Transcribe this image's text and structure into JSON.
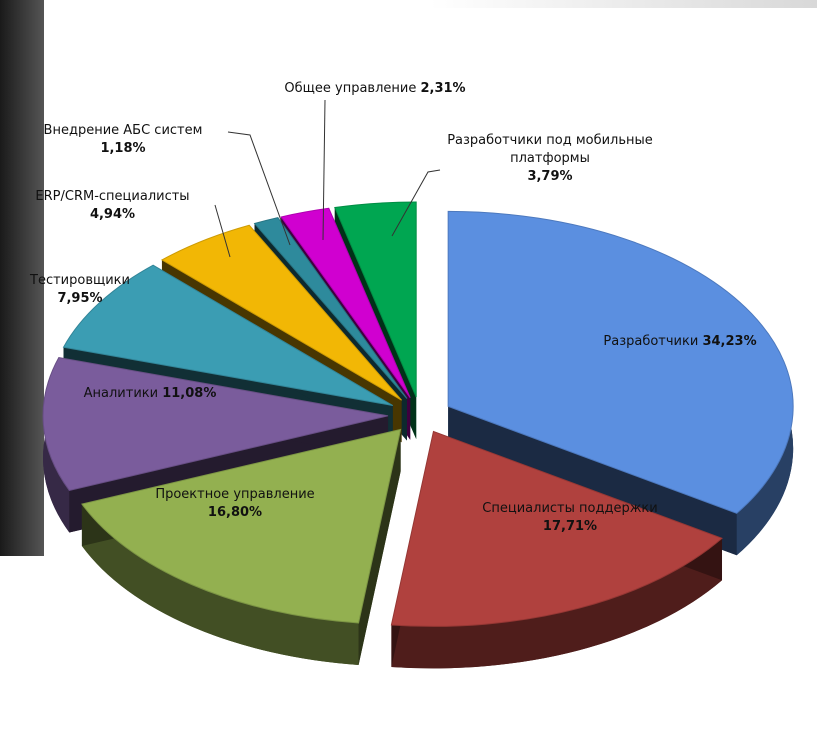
{
  "chart_data": {
    "type": "pie",
    "categories": [
      "Разработчики",
      "Специалисты поддержки",
      "Проектное управление",
      "Аналитики",
      "Тестировщики",
      "ERP/CRM-специалисты",
      "Внедрение АБС систем",
      "Общее управление",
      "Разработчики под мобильные платформы"
    ],
    "values": [
      34.23,
      17.71,
      16.8,
      11.08,
      7.95,
      4.94,
      1.18,
      2.31,
      3.79
    ],
    "value_labels": [
      "34,23%",
      "17,71%",
      "16,80%",
      "11,08%",
      "7,95%",
      "4,94%",
      "1,18%",
      "2,31%",
      "3,79%"
    ],
    "colors": [
      "#5b8fe0",
      "#b0413e",
      "#93b050",
      "#7a5c9c",
      "#3b9db3",
      "#f2b705",
      "#2e8a9c",
      "#d000d0",
      "#00a651"
    ]
  }
}
